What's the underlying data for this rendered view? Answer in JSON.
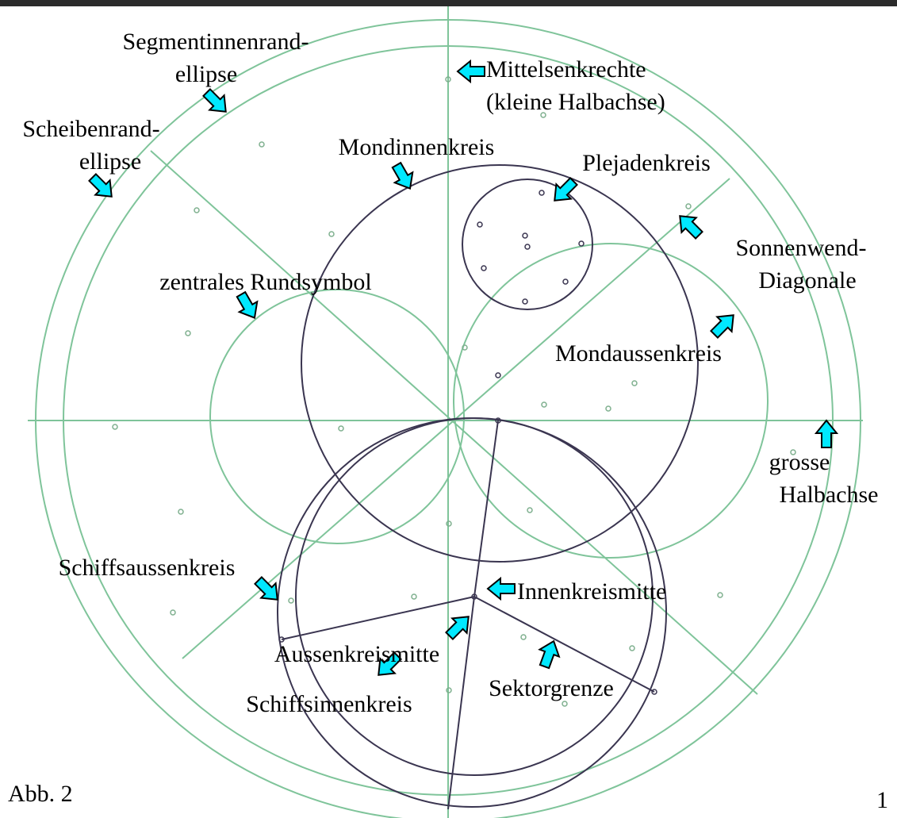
{
  "labels": [
    {
      "lines": [
        "Segmentinnenrand-",
        "ellipse"
      ]
    },
    {
      "lines": [
        "Mittelsenkrechte",
        "(kleine Halbachse)"
      ]
    },
    {
      "lines": [
        "Scheibenrand-",
        "ellipse"
      ]
    },
    {
      "lines": [
        "Mondinnenkreis"
      ]
    },
    {
      "lines": [
        "Plejadenkreis"
      ]
    },
    {
      "lines": [
        "Sonnenwend-",
        "Diagonale"
      ]
    },
    {
      "lines": [
        "zentrales Rundsymbol"
      ]
    },
    {
      "lines": [
        "Mondaussenkreis"
      ]
    },
    {
      "lines": [
        "grosse",
        "Halbachse"
      ]
    },
    {
      "lines": [
        "Schiffsaussenkreis"
      ]
    },
    {
      "lines": [
        "Innenkreismitte"
      ]
    },
    {
      "lines": [
        "Aussenkreismitte"
      ]
    },
    {
      "lines": [
        "Sektorgrenze"
      ]
    },
    {
      "lines": [
        "Schiffsinnenkreis"
      ]
    }
  ],
  "caption": "Abb. 2",
  "page_number": "1"
}
